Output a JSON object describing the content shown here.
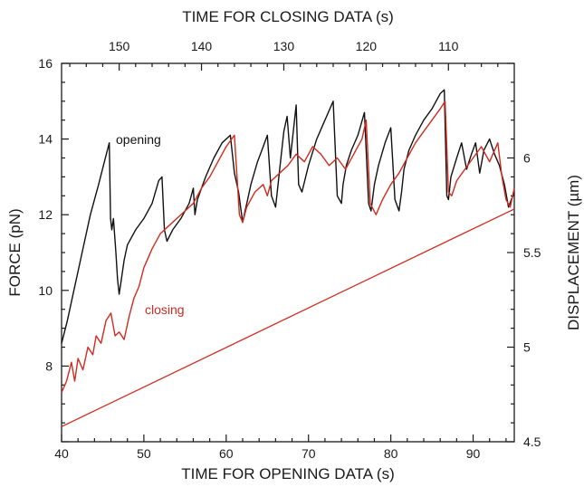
{
  "chart_data": {
    "type": "line",
    "title": "",
    "xlabel": "TIME FOR OPENING DATA (s)",
    "x2label": "TIME FOR CLOSING DATA (s)",
    "ylabel": "FORCE (pN)",
    "y2label": "DISPLACEMENT (µm)",
    "xlim": [
      40,
      95
    ],
    "ylim": [
      6,
      16
    ],
    "x2lim": [
      157,
      102
    ],
    "y2lim": [
      4.5,
      6.5
    ],
    "x_ticks": [
      "40",
      "50",
      "60",
      "70",
      "80",
      "90"
    ],
    "y_ticks": [
      "8",
      "10",
      "12",
      "14",
      "16"
    ],
    "x2_ticks": [
      "150",
      "140",
      "130",
      "120",
      "110"
    ],
    "y2_ticks": [
      "4.5",
      "5",
      "5.5",
      "6"
    ],
    "colors": {
      "opening": "#111111",
      "closing": "#d42a1f",
      "displacement": "#d42a1f"
    },
    "annotations": {
      "opening": "opening",
      "closing": "closing"
    },
    "series": [
      {
        "name": "opening",
        "axis": "left",
        "color": "#111111",
        "x": [
          40,
          40.7,
          41.5,
          42.5,
          43.5,
          44.5,
          45.2,
          45.8,
          45.95,
          46.1,
          46.3,
          46.6,
          46.8,
          47.0,
          47.2,
          47.6,
          48.0,
          49.0,
          50.0,
          51.0,
          51.8,
          52.2,
          52.5,
          52.8,
          53.5,
          54.5,
          55.5,
          56.0,
          56.2,
          56.5,
          57.5,
          58.5,
          59.5,
          60.5,
          61.0,
          61.5,
          62.0,
          62.3,
          62.6,
          63.0,
          63.8,
          64.5,
          65.0,
          65.5,
          66.0,
          66.5,
          67.0,
          67.4,
          67.8,
          68.2,
          68.5,
          68.8,
          69.2,
          70.0,
          71.0,
          72.0,
          73.0,
          73.5,
          74.0,
          74.2,
          74.6,
          75.2,
          76.0,
          76.8,
          77.3,
          77.6,
          78.0,
          78.5,
          79.3,
          80.0,
          80.5,
          81.0,
          81.3,
          81.6,
          82.2,
          83.0,
          84.0,
          85.0,
          86.0,
          86.5,
          86.8,
          87.0,
          87.3,
          88.0,
          88.6,
          89.2,
          89.8,
          90.3,
          90.8,
          91.3,
          92.0,
          92.6,
          93.2,
          93.8,
          94.3,
          95.0
        ],
        "y": [
          8.6,
          9.2,
          10.0,
          11.0,
          12.0,
          12.8,
          13.4,
          13.9,
          11.9,
          11.6,
          11.9,
          11.0,
          10.3,
          9.9,
          10.2,
          10.8,
          11.2,
          11.6,
          11.9,
          12.3,
          12.9,
          13.0,
          11.6,
          11.3,
          11.6,
          11.9,
          12.3,
          12.7,
          12.0,
          12.4,
          13.0,
          13.5,
          13.9,
          14.1,
          13.1,
          12.6,
          11.8,
          12.1,
          12.4,
          12.8,
          13.4,
          13.8,
          14.1,
          12.5,
          12.2,
          13.2,
          14.2,
          14.6,
          13.5,
          14.3,
          14.9,
          12.8,
          12.6,
          13.3,
          14.0,
          14.5,
          15.0,
          12.5,
          12.3,
          12.8,
          13.3,
          13.7,
          14.1,
          14.7,
          12.3,
          12.1,
          12.8,
          13.3,
          13.9,
          14.3,
          12.4,
          12.1,
          12.6,
          13.2,
          13.7,
          14.1,
          14.5,
          14.8,
          15.2,
          15.3,
          12.5,
          12.4,
          13.0,
          13.5,
          13.9,
          13.2,
          13.6,
          13.9,
          13.1,
          13.7,
          14.0,
          13.6,
          13.3,
          12.8,
          12.2,
          12.6
        ]
      },
      {
        "name": "closing",
        "axis": "left",
        "color": "#d42a1f",
        "x": [
          40,
          40.6,
          41.2,
          41.6,
          42.0,
          42.6,
          43.2,
          43.8,
          44.2,
          44.8,
          45.4,
          46.0,
          46.5,
          47.0,
          47.6,
          48.2,
          48.8,
          49.4,
          50.0,
          51.0,
          52.0,
          53.0,
          54.0,
          55.0,
          56.0,
          57.0,
          58.0,
          59.0,
          60.0,
          61.0,
          61.6,
          62.0,
          62.5,
          63.5,
          64.5,
          65.0,
          65.5,
          66.5,
          67.5,
          68.5,
          69.5,
          70.5,
          71.5,
          72.5,
          73.5,
          74.5,
          75.5,
          76.5,
          77.0,
          77.5,
          78.2,
          79.0,
          80.0,
          81.0,
          82.0,
          83.0,
          84.0,
          85.0,
          86.0,
          86.6,
          87.0,
          87.4,
          88.0,
          89.0,
          90.0,
          91.0,
          92.0,
          93.0,
          93.5,
          94.0,
          94.5,
          95.0
        ],
        "y": [
          7.3,
          7.6,
          8.1,
          7.6,
          8.2,
          7.9,
          8.5,
          8.3,
          8.8,
          8.6,
          9.2,
          9.4,
          8.8,
          8.9,
          8.7,
          9.3,
          9.8,
          10.1,
          10.6,
          11.1,
          11.5,
          11.7,
          11.9,
          12.1,
          12.3,
          12.7,
          13.0,
          13.4,
          13.8,
          14.1,
          12.0,
          11.8,
          12.2,
          12.6,
          12.8,
          12.5,
          12.9,
          13.1,
          13.3,
          13.6,
          13.4,
          13.8,
          13.6,
          13.3,
          13.5,
          13.2,
          13.6,
          14.0,
          14.5,
          12.3,
          12.0,
          12.4,
          12.8,
          13.1,
          13.5,
          13.9,
          14.2,
          14.5,
          14.8,
          15.0,
          12.6,
          12.5,
          12.9,
          13.2,
          13.5,
          13.8,
          13.4,
          13.9,
          13.0,
          12.4,
          12.2,
          12.7
        ]
      },
      {
        "name": "displacement",
        "axis": "right",
        "color": "#d42a1f",
        "x": [
          40,
          95
        ],
        "y": [
          4.58,
          5.73
        ]
      }
    ]
  }
}
